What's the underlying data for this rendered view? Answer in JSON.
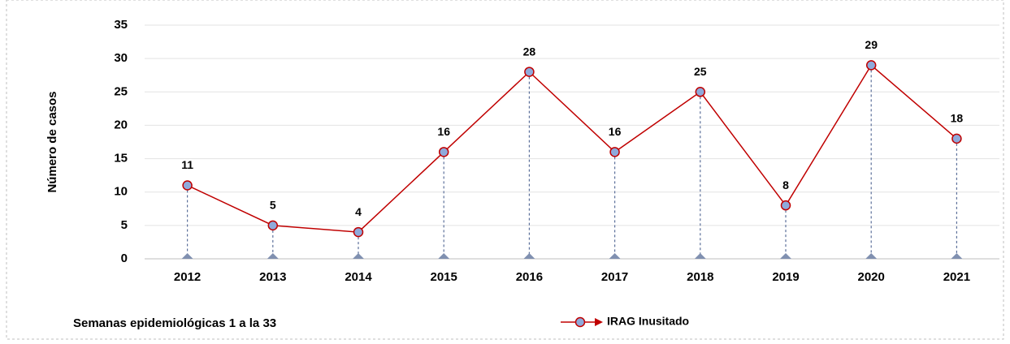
{
  "chart_data": {
    "type": "line",
    "categories": [
      "2012",
      "2013",
      "2014",
      "2015",
      "2016",
      "2017",
      "2018",
      "2019",
      "2020",
      "2021"
    ],
    "series": [
      {
        "name": "IRAG Inusitado",
        "color": "#c00000",
        "marker_color": "#8eaadb",
        "values": [
          11,
          5,
          4,
          16,
          28,
          16,
          25,
          8,
          29,
          18
        ]
      }
    ],
    "ylim": [
      0,
      35
    ],
    "yticks": [
      0,
      5,
      10,
      15,
      20,
      25,
      30,
      35
    ],
    "grid": true,
    "y_label": "Número de casos",
    "note": "Semanas epidemiológicas 1 a la 33",
    "legend": "bottom"
  }
}
